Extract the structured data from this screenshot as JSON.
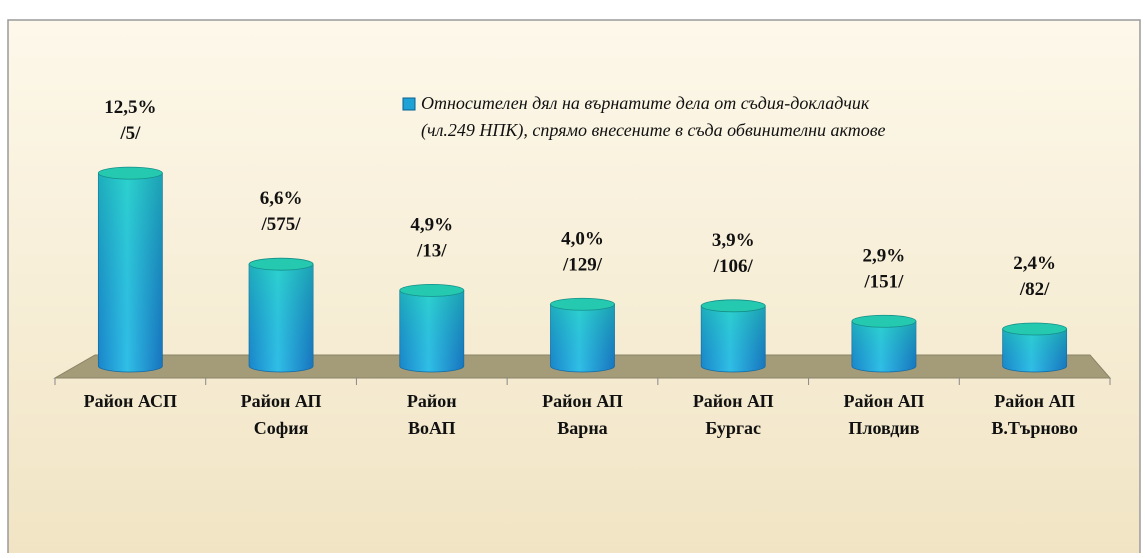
{
  "chart_data": {
    "type": "bar",
    "categories": [
      "Район АСП",
      "Район АП\nСофия",
      "Район\nВоАП",
      "Район АП\nВарна",
      "Район АП\nБургас",
      "Район АП\nПловдив",
      "Район АП\nВ.Търново"
    ],
    "series": [
      {
        "name": "Относителен дял на върнатите дела от съдия-докладчик\n(чл.249 НПК), спрямо внесените в съда обвинителни актове",
        "color": "#1fa3d6",
        "values": [
          12.5,
          6.6,
          4.9,
          4.0,
          3.9,
          2.9,
          2.4
        ],
        "value_labels": [
          "12,5%",
          "6,6%",
          "4,9%",
          "4,0%",
          "3,9%",
          "2,9%",
          "2,4%"
        ],
        "count_labels": [
          "/5/",
          "/575/",
          "/13/",
          "/129/",
          "/106/",
          "/151/",
          "/82/"
        ]
      }
    ],
    "ylim": [
      0,
      14
    ]
  }
}
